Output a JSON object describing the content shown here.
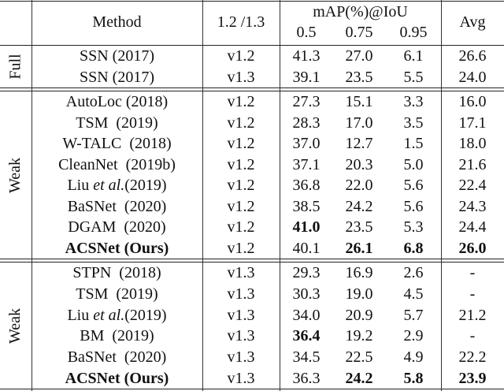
{
  "header": {
    "method": "Method",
    "version": "1.2 /1.3",
    "map": "mAP(%)@IoU",
    "iou": [
      "0.5",
      "0.75",
      "0.95"
    ],
    "avg": "Avg"
  },
  "groups": [
    {
      "label": "Full",
      "rows": [
        {
          "method": "SSN (2017)",
          "version": "v1.2",
          "values": [
            "41.3",
            "27.0",
            "6.1",
            "26.6"
          ],
          "bold": []
        },
        {
          "method": "SSN (2017)",
          "version": "v1.3",
          "values": [
            "39.1",
            "23.5",
            "5.5",
            "24.0"
          ],
          "bold": []
        }
      ]
    },
    {
      "label": "Weak",
      "rows": [
        {
          "method": "AutoLoc (2018)",
          "version": "v1.2",
          "values": [
            "27.3",
            "15.1",
            "3.3",
            "16.0"
          ],
          "bold": []
        },
        {
          "method": "TSM  (2019)",
          "version": "v1.2",
          "values": [
            "28.3",
            "17.0",
            "3.5",
            "17.1"
          ],
          "bold": []
        },
        {
          "method": "W-TALC  (2018)",
          "version": "v1.2",
          "values": [
            "37.0",
            "12.7",
            "1.5",
            "18.0"
          ],
          "bold": []
        },
        {
          "method": "CleanNet  (2019b)",
          "version": "v1.2",
          "values": [
            "37.1",
            "20.3",
            "5.0",
            "21.6"
          ],
          "bold": []
        },
        {
          "method": "Liu et al.(2019)",
          "version": "v1.2",
          "values": [
            "36.8",
            "22.0",
            "5.6",
            "22.4"
          ],
          "bold": []
        },
        {
          "method": "BaSNet  (2020)",
          "version": "v1.2",
          "values": [
            "38.5",
            "24.2",
            "5.6",
            "24.3"
          ],
          "bold": []
        },
        {
          "method": "DGAM  (2020)",
          "version": "v1.2",
          "values": [
            "41.0",
            "23.5",
            "5.3",
            "24.4"
          ],
          "bold": [
            0
          ]
        },
        {
          "method": "ACSNet (Ours)",
          "version": "v1.2",
          "values": [
            "40.1",
            "26.1",
            "6.8",
            "26.0"
          ],
          "bold": [
            1,
            2,
            3
          ],
          "method_bold": true
        }
      ]
    },
    {
      "label": "Weak",
      "rows": [
        {
          "method": "STPN  (2018)",
          "version": "v1.3",
          "values": [
            "29.3",
            "16.9",
            "2.6",
            "-"
          ],
          "bold": []
        },
        {
          "method": "TSM  (2019)",
          "version": "v1.3",
          "values": [
            "30.3",
            "19.0",
            "4.5",
            "-"
          ],
          "bold": []
        },
        {
          "method": "Liu et al.(2019)",
          "version": "v1.3",
          "values": [
            "34.0",
            "20.9",
            "5.7",
            "21.2"
          ],
          "bold": []
        },
        {
          "method": "BM  (2019)",
          "version": "v1.3",
          "values": [
            "36.4",
            "19.2",
            "2.9",
            "-"
          ],
          "bold": [
            0
          ]
        },
        {
          "method": "BaSNet  (2020)",
          "version": "v1.3",
          "values": [
            "34.5",
            "22.5",
            "4.9",
            "22.2"
          ],
          "bold": []
        },
        {
          "method": "ACSNet (Ours)",
          "version": "v1.3",
          "values": [
            "36.3",
            "24.2",
            "5.8",
            "23.9"
          ],
          "bold": [
            1,
            2,
            3
          ],
          "method_bold": true
        }
      ]
    }
  ]
}
